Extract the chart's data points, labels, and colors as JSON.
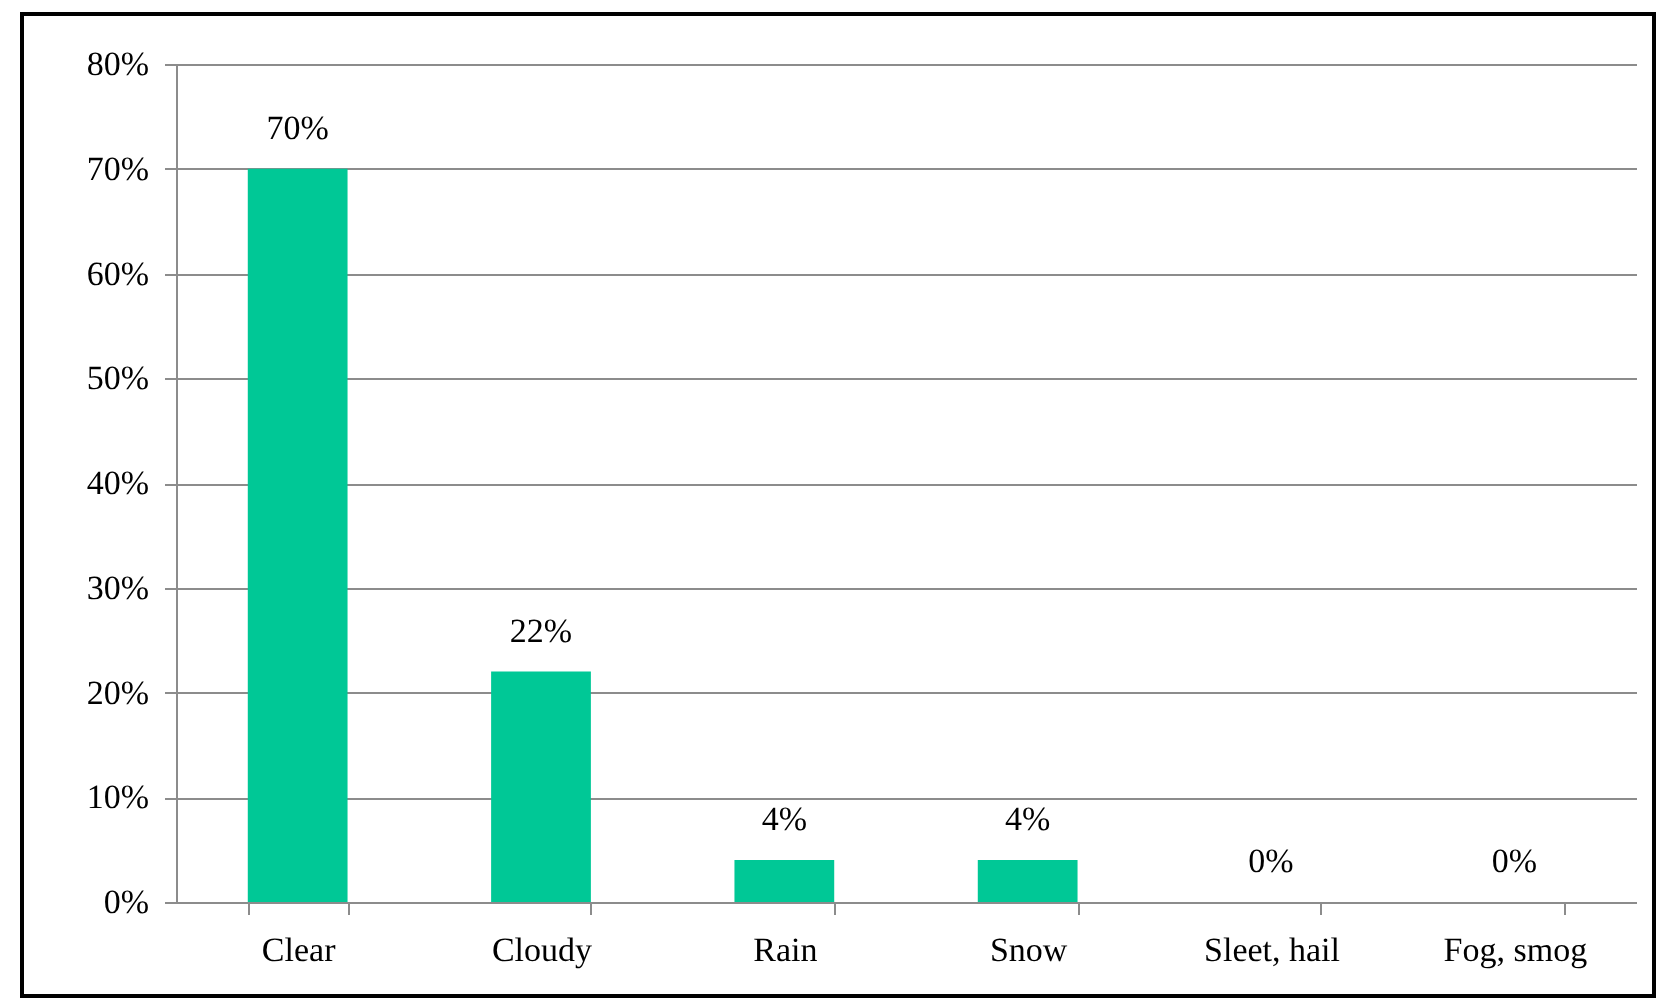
{
  "chart_data": {
    "type": "bar",
    "categories": [
      "Clear",
      "Cloudy",
      "Rain",
      "Snow",
      "Sleet, hail",
      "Fog, smog"
    ],
    "values": [
      70,
      22,
      4,
      4,
      0,
      0
    ],
    "value_labels": [
      "70%",
      "22%",
      "4%",
      "4%",
      "0%",
      "0%"
    ],
    "color": "#00c896",
    "ylim": [
      0,
      80
    ],
    "yticks": [
      {
        "value": 0,
        "label": "0%"
      },
      {
        "value": 10,
        "label": "10%"
      },
      {
        "value": 20,
        "label": "20%"
      },
      {
        "value": 30,
        "label": "30%"
      },
      {
        "value": 40,
        "label": "40%"
      },
      {
        "value": 50,
        "label": "50%"
      },
      {
        "value": 60,
        "label": "60%"
      },
      {
        "value": 70,
        "label": "70%"
      },
      {
        "value": 80,
        "label": "80%"
      }
    ],
    "grid": "y"
  }
}
